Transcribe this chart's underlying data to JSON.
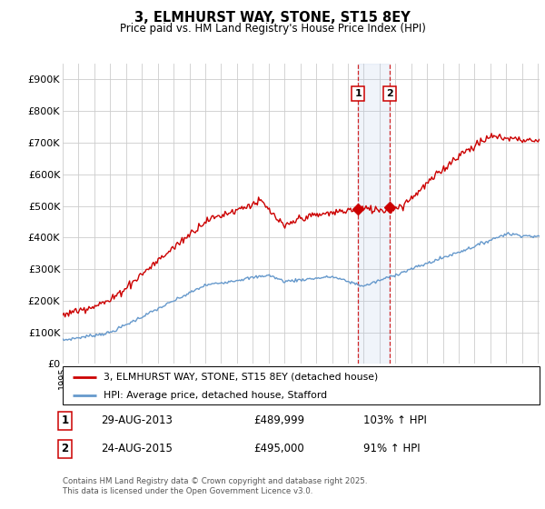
{
  "title": "3, ELMHURST WAY, STONE, ST15 8EY",
  "subtitle": "Price paid vs. HM Land Registry's House Price Index (HPI)",
  "red_label": "3, ELMHURST WAY, STONE, ST15 8EY (detached house)",
  "blue_label": "HPI: Average price, detached house, Stafford",
  "sale1_date": "29-AUG-2013",
  "sale1_price": 489999,
  "sale1_pct": "103% ↑ HPI",
  "sale2_date": "24-AUG-2015",
  "sale2_price": 495000,
  "sale2_pct": "91% ↑ HPI",
  "footer": "Contains HM Land Registry data © Crown copyright and database right 2025.\nThis data is licensed under the Open Government Licence v3.0.",
  "ylim_min": 0,
  "ylim_max": 950000,
  "year_start": 1995,
  "year_end": 2025,
  "red_color": "#cc0000",
  "blue_color": "#6699cc",
  "sale1_year": 2013.65,
  "sale2_year": 2015.65,
  "background_color": "#ffffff",
  "grid_color": "#cccccc"
}
